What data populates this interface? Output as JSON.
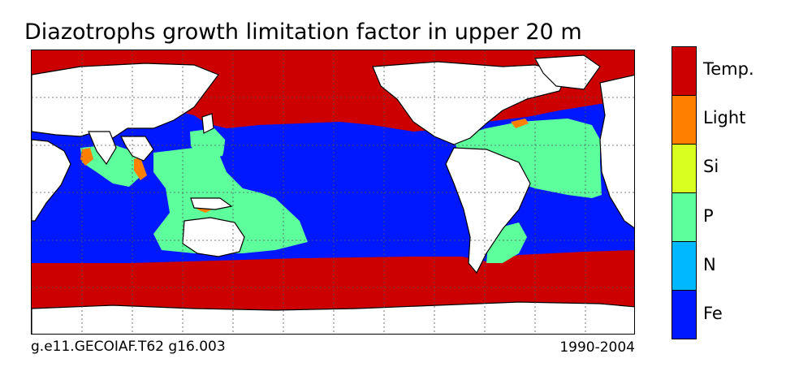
{
  "title": "Diazotrophs growth limitation factor in upper 20 m",
  "caption_left": "g.e11.GECOIAF.T62 g16.003",
  "caption_right": "1990-2004",
  "legend": [
    {
      "label": "Temp.",
      "color": "#cc0000"
    },
    {
      "label": "Light",
      "color": "#ff8000"
    },
    {
      "label": "Si",
      "color": "#d8ff20"
    },
    {
      "label": "P",
      "color": "#5cff9c"
    },
    {
      "label": "N",
      "color": "#00b8ff"
    },
    {
      "label": "Fe",
      "color": "#0018ff"
    }
  ],
  "map": {
    "projection": "cylindrical, Pacific-centered",
    "gridlines": true,
    "land_color": "#ffffff",
    "coastline_color": "#000000"
  }
}
